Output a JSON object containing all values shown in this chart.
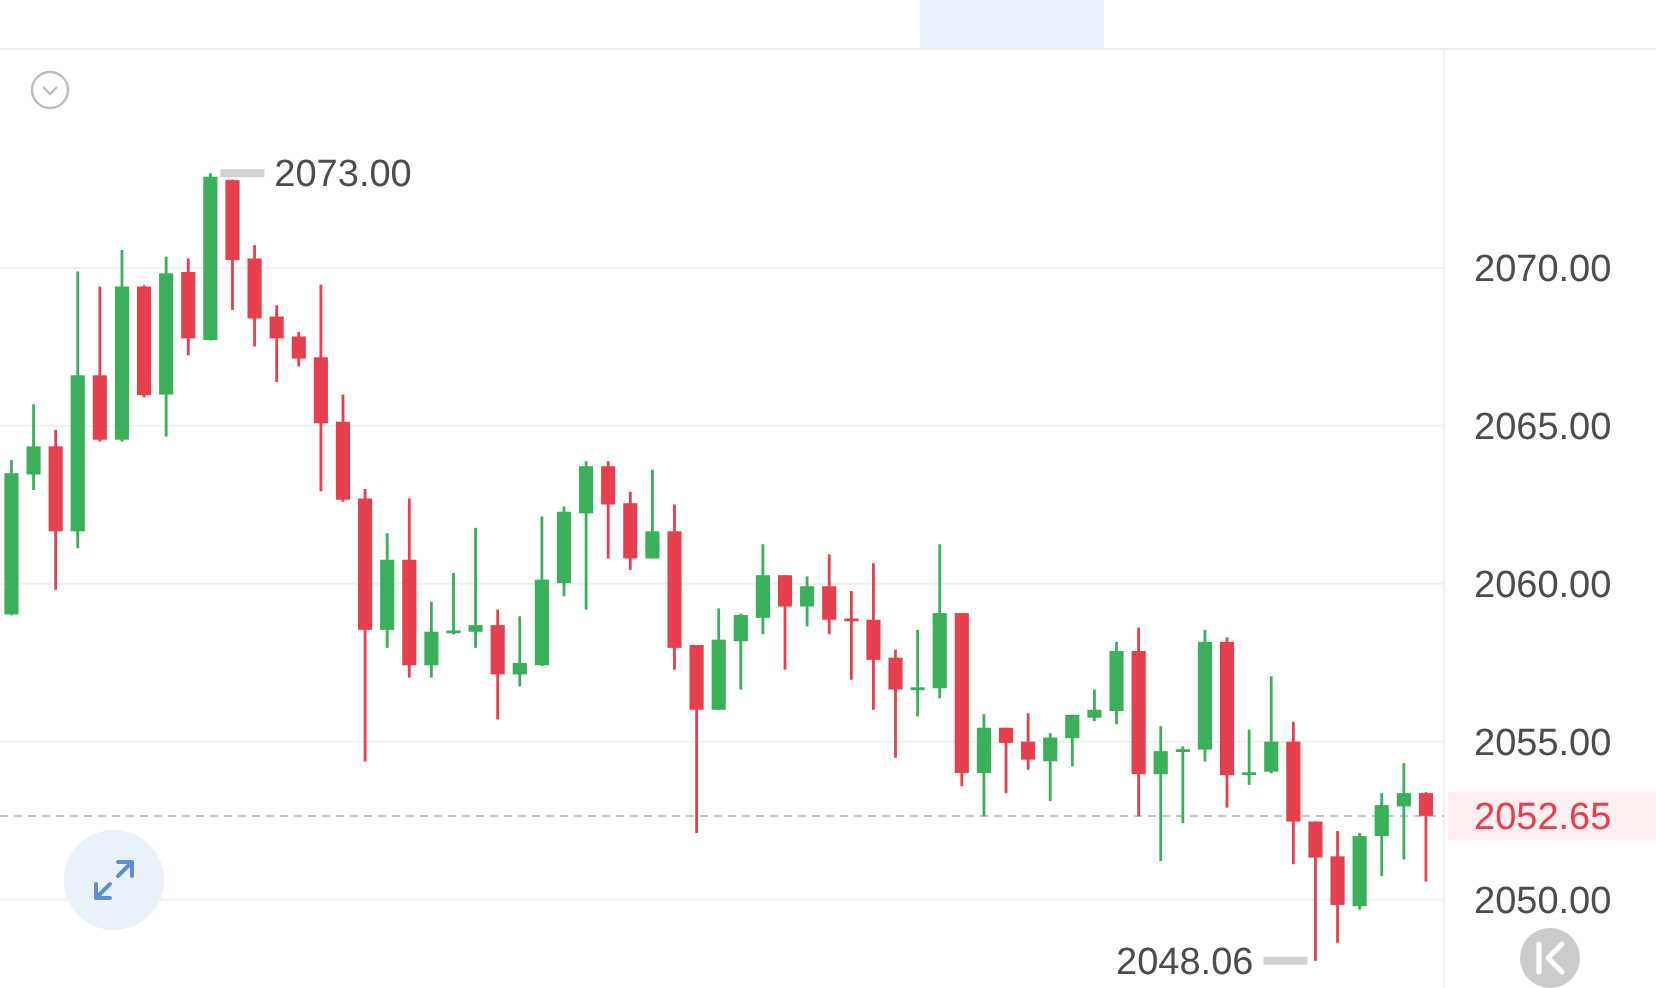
{
  "chart_data": {
    "type": "candlestick",
    "categories": [
      null,
      null,
      null,
      null,
      null,
      null,
      null,
      null,
      null,
      null,
      null,
      null,
      null,
      null,
      null,
      null,
      null,
      null,
      null,
      null,
      null,
      null,
      null,
      null,
      null,
      null,
      null,
      null,
      null,
      null,
      null,
      null,
      null,
      null,
      null,
      null,
      null,
      null,
      null,
      null,
      null,
      null,
      null,
      null,
      null,
      null,
      null,
      null,
      null,
      null,
      null,
      null,
      null,
      null,
      null,
      null,
      null,
      null,
      null,
      null,
      null,
      null,
      null,
      null,
      null
    ],
    "ohlc": [
      [
        2059.03,
        2063.92,
        2059.0,
        2063.5
      ],
      [
        2063.46,
        2065.68,
        2062.97,
        2064.35
      ],
      [
        2064.35,
        2064.87,
        2059.81,
        2061.66
      ],
      [
        2061.66,
        2069.89,
        2061.12,
        2066.6
      ],
      [
        2066.6,
        2069.41,
        2064.5,
        2064.56
      ],
      [
        2064.56,
        2070.57,
        2064.5,
        2069.41
      ],
      [
        2069.41,
        2069.45,
        2065.9,
        2065.97
      ],
      [
        2065.99,
        2070.36,
        2064.66,
        2069.83
      ],
      [
        2069.87,
        2070.3,
        2067.23,
        2067.77
      ],
      [
        2067.72,
        2073.0,
        2067.7,
        2072.89
      ],
      [
        2072.78,
        2072.8,
        2068.67,
        2070.25
      ],
      [
        2070.3,
        2070.72,
        2067.51,
        2068.4
      ],
      [
        2068.46,
        2068.82,
        2066.39,
        2067.77
      ],
      [
        2067.83,
        2067.97,
        2066.88,
        2067.13
      ],
      [
        2067.17,
        2069.47,
        2062.93,
        2065.08
      ],
      [
        2065.13,
        2065.99,
        2062.6,
        2062.66
      ],
      [
        2062.7,
        2063.0,
        2054.37,
        2058.54
      ],
      [
        2058.54,
        2061.6,
        2057.97,
        2060.76
      ],
      [
        2060.76,
        2062.7,
        2057.03,
        2057.42
      ],
      [
        2057.42,
        2059.43,
        2057.03,
        2058.48
      ],
      [
        2058.48,
        2060.34,
        2058.4,
        2058.52
      ],
      [
        2058.48,
        2061.77,
        2057.97,
        2058.69
      ],
      [
        2058.69,
        2059.18,
        2055.7,
        2057.13
      ],
      [
        2057.13,
        2058.97,
        2056.75,
        2057.49
      ],
      [
        2057.42,
        2062.13,
        2057.4,
        2060.13
      ],
      [
        2060.02,
        2062.45,
        2059.6,
        2062.28
      ],
      [
        2062.23,
        2063.88,
        2059.18,
        2063.72
      ],
      [
        2063.72,
        2063.88,
        2060.8,
        2062.51
      ],
      [
        2062.55,
        2062.91,
        2060.44,
        2060.8
      ],
      [
        2060.8,
        2063.61,
        2060.8,
        2061.66
      ],
      [
        2061.66,
        2062.51,
        2057.28,
        2057.97
      ],
      [
        2058.06,
        2058.06,
        2052.11,
        2056.01
      ],
      [
        2056.01,
        2059.22,
        2056.0,
        2058.23
      ],
      [
        2058.18,
        2059.05,
        2056.65,
        2059.01
      ],
      [
        2058.92,
        2061.25,
        2058.4,
        2060.27
      ],
      [
        2060.27,
        2060.27,
        2057.28,
        2059.28
      ],
      [
        2059.28,
        2060.23,
        2058.65,
        2059.92
      ],
      [
        2059.92,
        2060.93,
        2058.4,
        2058.86
      ],
      [
        2058.9,
        2059.77,
        2056.96,
        2058.82
      ],
      [
        2058.86,
        2060.65,
        2056.01,
        2057.59
      ],
      [
        2057.66,
        2057.91,
        2054.49,
        2056.65
      ],
      [
        2056.68,
        2058.54,
        2055.8,
        2056.72
      ],
      [
        2056.69,
        2061.25,
        2056.37,
        2059.07
      ],
      [
        2059.07,
        2059.07,
        2053.59,
        2054.01
      ],
      [
        2054.01,
        2055.87,
        2052.64,
        2055.44
      ],
      [
        2055.44,
        2055.44,
        2053.37,
        2054.96
      ],
      [
        2055.0,
        2055.9,
        2054.11,
        2054.43
      ],
      [
        2054.38,
        2055.27,
        2053.12,
        2055.13
      ],
      [
        2055.11,
        2055.85,
        2054.22,
        2055.85
      ],
      [
        2055.76,
        2056.65,
        2055.65,
        2056.01
      ],
      [
        2055.97,
        2058.16,
        2055.55,
        2057.87
      ],
      [
        2057.87,
        2058.61,
        2052.64,
        2053.97
      ],
      [
        2053.97,
        2055.49,
        2051.22,
        2054.7
      ],
      [
        2054.72,
        2054.85,
        2052.42,
        2054.76
      ],
      [
        2054.75,
        2058.54,
        2054.37,
        2058.16
      ],
      [
        2058.16,
        2058.3,
        2052.91,
        2053.94
      ],
      [
        2053.99,
        2055.38,
        2053.63,
        2054.03
      ],
      [
        2054.05,
        2057.07,
        2054.0,
        2055.0
      ],
      [
        2055.0,
        2055.63,
        2051.12,
        2052.47
      ],
      [
        2052.47,
        2052.47,
        2048.06,
        2051.33
      ],
      [
        2051.37,
        2052.17,
        2048.63,
        2049.83
      ],
      [
        2049.79,
        2052.11,
        2049.68,
        2052.01
      ],
      [
        2052.01,
        2053.37,
        2050.74,
        2052.99
      ],
      [
        2052.95,
        2054.32,
        2051.27,
        2053.37
      ],
      [
        2053.37,
        2053.4,
        2050.57,
        2052.65
      ]
    ],
    "colors": [
      "#3bb05b",
      "#3bb05b",
      "#e6404e",
      "#3bb05b",
      "#e6404e",
      "#3bb05b",
      "#e6404e",
      "#3bb05b",
      "#e6404e",
      "#3bb05b",
      "#e6404e",
      "#e6404e",
      "#e6404e",
      "#e6404e",
      "#e6404e",
      "#e6404e",
      "#e6404e",
      "#3bb05b",
      "#e6404e",
      "#3bb05b",
      "#3bb05b",
      "#3bb05b",
      "#e6404e",
      "#3bb05b",
      "#3bb05b",
      "#3bb05b",
      "#3bb05b",
      "#e6404e",
      "#e6404e",
      "#3bb05b",
      "#e6404e",
      "#e6404e",
      "#3bb05b",
      "#3bb05b",
      "#3bb05b",
      "#e6404e",
      "#3bb05b",
      "#e6404e",
      "#e6404e",
      "#e6404e",
      "#e6404e",
      "#3bb05b",
      "#3bb05b",
      "#e6404e",
      "#3bb05b",
      "#e6404e",
      "#e6404e",
      "#3bb05b",
      "#3bb05b",
      "#3bb05b",
      "#3bb05b",
      "#e6404e",
      "#3bb05b",
      "#3bb05b",
      "#3bb05b",
      "#e6404e",
      "#3bb05b",
      "#3bb05b",
      "#e6404e",
      "#e6404e",
      "#e6404e",
      "#3bb05b",
      "#3bb05b",
      "#3bb05b",
      "#e6404e"
    ],
    "ylim": [
      2047.2,
      2076.9
    ],
    "yticks": [
      {
        "value": 2050,
        "label": "2050.00"
      },
      {
        "value": 2055,
        "label": "2055.00"
      },
      {
        "value": 2060,
        "label": "2060.00"
      },
      {
        "value": 2065,
        "label": "2065.00"
      },
      {
        "value": 2070,
        "label": "2070.00"
      }
    ],
    "grid": "y",
    "tick_labels": "y",
    "ref_lines": [
      {
        "axis": "y",
        "value": 2052.65,
        "label": "2052.65",
        "line_style": "dashed"
      }
    ],
    "annotations": [
      "2073.00",
      "2048.06"
    ]
  }
}
